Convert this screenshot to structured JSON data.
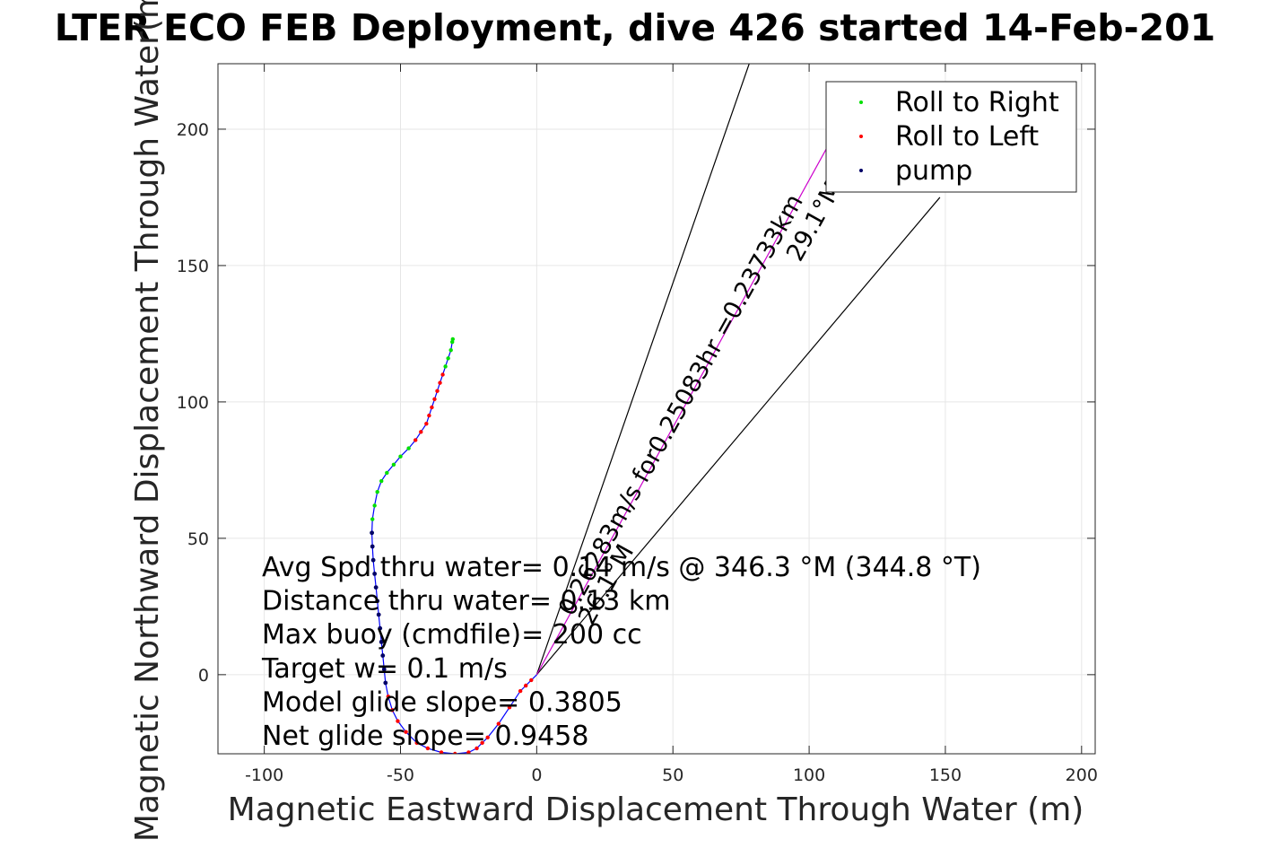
{
  "chart_data": {
    "type": "scatter",
    "title": "LTER ECO FEB Deployment, dive 426 started 14-Feb-201",
    "xlabel": "Magnetic Eastward Displacement Through Water (m)",
    "ylabel": "Magnetic Northward Displacement Through Water(m)",
    "xlim": [
      -117,
      205
    ],
    "ylim": [
      -29,
      224
    ],
    "xticks": [
      -100,
      -50,
      0,
      50,
      100,
      150,
      200
    ],
    "yticks": [
      0,
      50,
      100,
      150,
      200
    ],
    "grid": true,
    "legend": {
      "placement": "top-right",
      "entries": [
        {
          "label": "Roll to Right",
          "color": "#00e000"
        },
        {
          "label": "Roll to Left",
          "color": "#ff0000"
        },
        {
          "label": "pump",
          "color": "#000066"
        }
      ]
    },
    "track": {
      "line_color": "#0000ff",
      "x": [
        0,
        -2,
        -4,
        -6,
        -10,
        -14,
        -18,
        -20,
        -22,
        -25,
        -30,
        -35,
        -40,
        -44,
        -48,
        -51,
        -53,
        -54.5,
        -55.5,
        -56,
        -56.5,
        -57,
        -57.5,
        -58,
        -58.5,
        -59,
        -59.5,
        -60,
        -60.3,
        -60.5,
        -60.3,
        -59.5,
        -58.5,
        -57,
        -55,
        -52.5,
        -50,
        -47,
        -44.5,
        -42.5,
        -40.5,
        -39.5,
        -38.5,
        -37.5,
        -36.5,
        -35.5,
        -34.5,
        -33.5,
        -32.5,
        -31.5,
        -31,
        -30.8
      ],
      "y": [
        0,
        -2,
        -4,
        -6,
        -12,
        -18,
        -23,
        -25,
        -27,
        -28.5,
        -29,
        -28.5,
        -27,
        -25,
        -21,
        -17,
        -13,
        -8,
        -3,
        2,
        7,
        12,
        17,
        22,
        27,
        32,
        37,
        42,
        47,
        52,
        57,
        62,
        67,
        71,
        74,
        77,
        80,
        83,
        86,
        89,
        92,
        95,
        98,
        101,
        104,
        107,
        110,
        113,
        116,
        119,
        122,
        123
      ]
    },
    "roll_right": {
      "x": [
        -56,
        -57,
        -58.5,
        -60,
        -60.5,
        -60.3,
        -59.5,
        -58.5,
        -57,
        -55,
        -52.5,
        -50,
        -47,
        -33.5,
        -32.5,
        -31.5,
        -31,
        -30.8
      ],
      "y": [
        2,
        12,
        27,
        42,
        52,
        57,
        62,
        67,
        71,
        74,
        77,
        80,
        83,
        113,
        116,
        119,
        122,
        123
      ]
    },
    "roll_left": {
      "x": [
        -2,
        -4,
        -6,
        -10,
        -14,
        -18,
        -20,
        -22,
        -25,
        -30,
        -35,
        -40,
        -44,
        -48,
        -51,
        -53,
        -54.5,
        -44.5,
        -42.5,
        -40.5,
        -39.5,
        -38.5,
        -37.5,
        -36.5,
        -35.5,
        -34.5
      ],
      "y": [
        -2,
        -4,
        -6,
        -12,
        -18,
        -23,
        -25,
        -27,
        -28.5,
        -29,
        -28.5,
        -27,
        -25,
        -21,
        -17,
        -13,
        -8,
        86,
        89,
        92,
        95,
        98,
        101,
        104,
        107,
        110
      ]
    },
    "pump": {
      "x": [
        -55.5,
        -56,
        -56.5,
        -57,
        -57.5,
        -58,
        -58.5,
        -59,
        -59.5,
        -60,
        -60.3,
        -60.5
      ],
      "y": [
        -3,
        2,
        7,
        12,
        17,
        22,
        27,
        32,
        37,
        42,
        47,
        52
      ]
    },
    "heading_lines": [
      {
        "name": "net",
        "color": "#000000",
        "x": [
          0,
          78
        ],
        "y": [
          0,
          224
        ]
      },
      {
        "name": "net-2",
        "color": "#000000",
        "x": [
          0,
          148
        ],
        "y": [
          0,
          175
        ]
      },
      {
        "name": "predicted",
        "color": "#cc00cc",
        "x": [
          0,
          118
        ],
        "y": [
          0,
          214
        ]
      }
    ],
    "wedge_labels": {
      "upper": "0.26283m/s for0.25083hr =0.23733km",
      "upper_sub": "29.1°M",
      "lower_sub": "26.1°M"
    },
    "stats": [
      "Avg Spd thru water= 0.14 m/s @ 346.3 °M (344.8 °T)",
      "Distance thru water= 0.13 km",
      "Max buoy (cmdfile)= 200 cc",
      "Target w= 0.1 m/s",
      "Model glide slope= 0.3805",
      "Net glide slope= 0.9458"
    ]
  }
}
